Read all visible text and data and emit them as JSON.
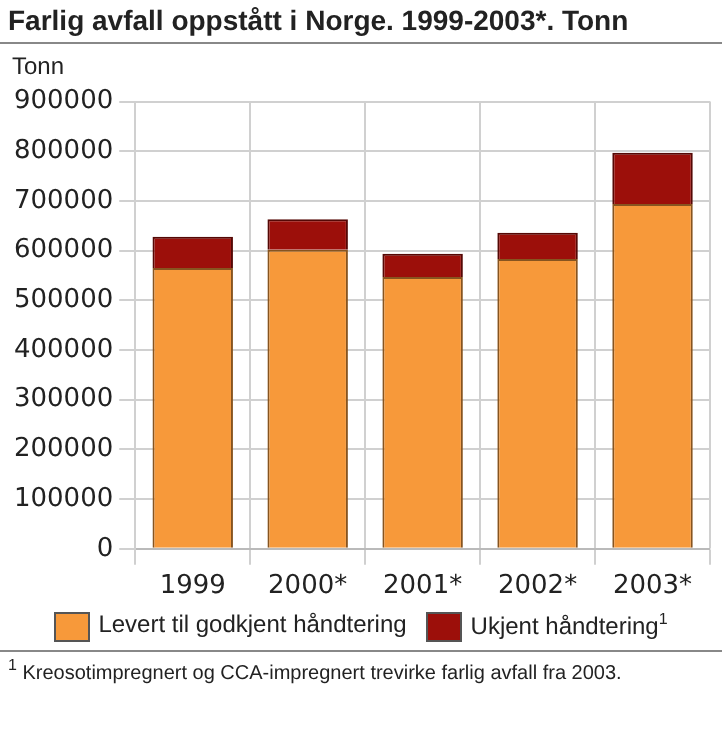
{
  "chart_data": {
    "type": "bar",
    "title": "Farlig avfall oppstått i Norge. 1999-2003*. Tonn",
    "ylabel": "Tonn",
    "categories": [
      "1999",
      "2000*",
      "2001*",
      "2002*",
      "2003*"
    ],
    "stacked": true,
    "series": [
      {
        "name": "Levert til godkjent håndtering",
        "color": "#f7993a",
        "values": [
          565000,
          602000,
          547000,
          583000,
          694000
        ]
      },
      {
        "name": "Ukjent håndtering$^{1}$",
        "color": "#9c0f0a",
        "values": [
          63000,
          61000,
          47000,
          53000,
          103000
        ]
      }
    ],
    "ylim": [
      0,
      900000
    ],
    "yticks": [
      0,
      100000,
      200000,
      300000,
      400000,
      500000,
      600000,
      700000,
      800000,
      900000
    ],
    "grid": true,
    "legend": "bottom",
    "annotations": [
      "$^{1}$ Kreosotimpregnert og CCA-impregnert trevirke farlig avfall fra 2003."
    ]
  }
}
